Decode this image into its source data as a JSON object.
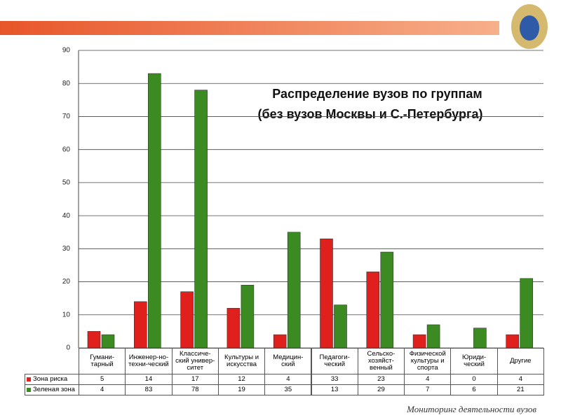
{
  "chart_data": {
    "type": "bar",
    "title": "Распределение вузов по группам",
    "subtitle": "(без вузов Москвы и С.-Петербурга)",
    "categories": [
      "Гумани-тарный",
      "Инженер-но-техни-ческий",
      "Классиче-ский универ-ситет",
      "Культуры и искусства",
      "Медицин-ский",
      "Педагоги-ческий",
      "Сельско-хозяйст-венный",
      "Физической культуры и спорта",
      "Юриди-ческий",
      "Другие"
    ],
    "series": [
      {
        "name": "Зона риска",
        "color": "#e0201c",
        "values": [
          5,
          14,
          17,
          12,
          4,
          33,
          23,
          4,
          0,
          4
        ]
      },
      {
        "name": "Зеленая зона",
        "color": "#3c8a22",
        "values": [
          4,
          83,
          78,
          19,
          35,
          13,
          29,
          7,
          6,
          21
        ]
      }
    ],
    "ylim": [
      0,
      90
    ],
    "yticks": [
      0,
      10,
      20,
      30,
      40,
      50,
      60,
      70,
      80,
      90
    ],
    "grid": true,
    "footer": "Мониторинг деятельности вузов"
  }
}
